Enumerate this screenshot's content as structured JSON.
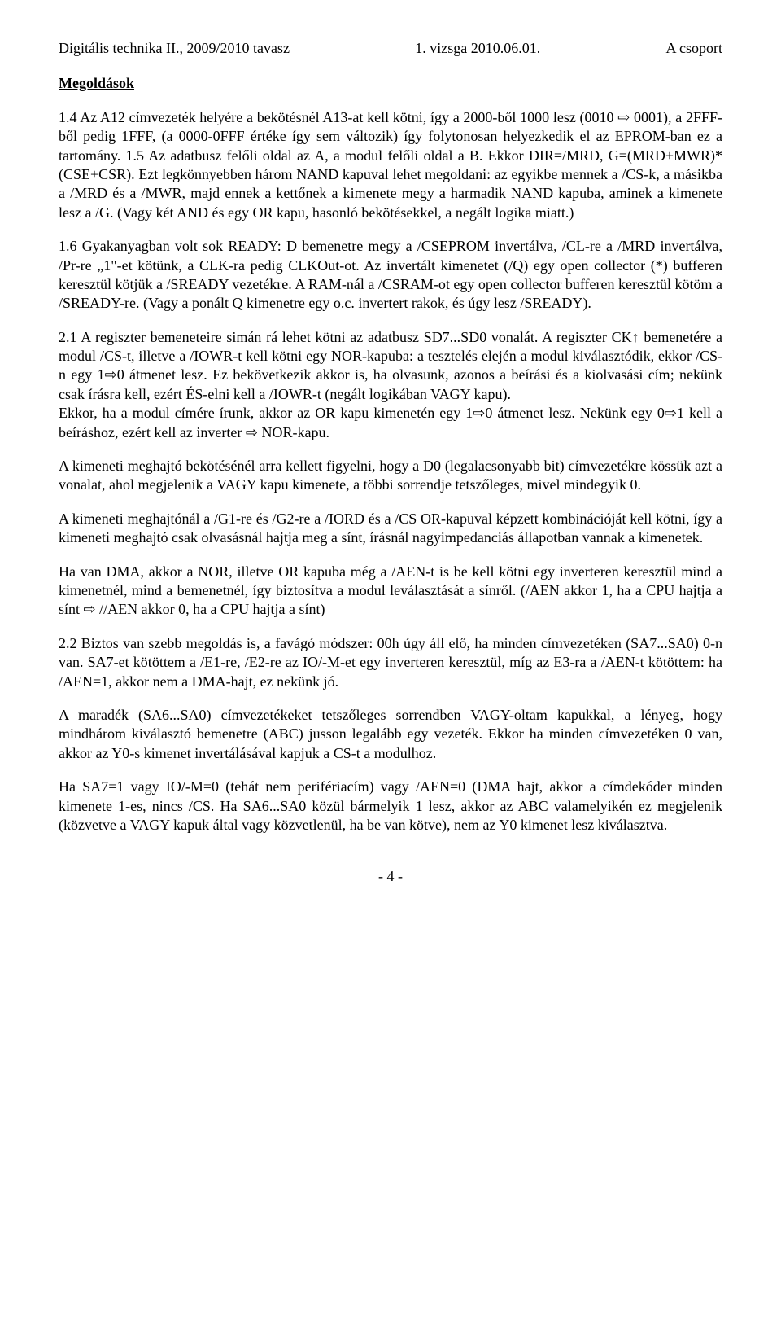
{
  "header": {
    "left": "Digitális technika II., 2009/2010 tavasz",
    "center": "1. vizsga 2010.06.01.",
    "right": "A csoport"
  },
  "title": "Megoldások",
  "paragraphs": {
    "p1": "1.4 Az A12 címvezeték helyére a bekötésnél A13-at kell kötni, így a 2000-ből 1000 lesz (0010 ⇨ 0001), a 2FFF-ből pedig 1FFF, (a 0000-0FFF értéke így sem változik) így folytonosan helyezkedik el az EPROM-ban ez a tartomány. 1.5 Az adatbusz felőli oldal az A, a modul felőli oldal a B. Ekkor DIR=/MRD, G=(MRD+MWR)*(CSE+CSR). Ezt legkönnyebben három NAND kapuval lehet megoldani: az egyikbe mennek a /CS-k, a másikba a /MRD és a /MWR, majd ennek a kettőnek a kimenete megy a harmadik NAND kapuba, aminek a kimenete lesz a /G. (Vagy két AND és egy OR kapu, hasonló bekötésekkel, a negált logika miatt.)",
    "p2": "1.6 Gyakanyagban volt sok READY:  D bemenetre megy a /CSEPROM invertálva, /CL-re a /MRD invertálva, /Pr-re „1\"-et kötünk,  a CLK-ra pedig CLKOut-ot. Az invertált kimenetet (/Q) egy open collector (*) bufferen keresztül kötjük a /SREADY vezetékre. A RAM-nál a /CSRAM-ot egy open collector bufferen keresztül kötöm a /SREADY-re. (Vagy a ponált Q kimenetre egy o.c. invertert rakok, és úgy lesz /SREADY).",
    "p3": "2.1 A regiszter bemeneteire simán rá lehet kötni az adatbusz SD7...SD0 vonalát. A regiszter CK↑ bemenetére a modul /CS-t, illetve a /IOWR-t kell kötni egy NOR-kapuba: a tesztelés elején a modul kiválasztódik, ekkor /CS-n egy 1⇨0 átmenet lesz. Ez bekövetkezik akkor is, ha olvasunk, azonos a beírási és a kiolvasási cím; nekünk csak írásra kell, ezért ÉS-elni kell a /IOWR-t (negált logikában VAGY kapu).",
    "p3b": "Ekkor, ha a modul címére írunk, akkor az OR kapu kimenetén egy 1⇨0 átmenet lesz. Nekünk egy 0⇨1 kell a beíráshoz, ezért kell az inverter ⇨ NOR-kapu.",
    "p4": "A kimeneti meghajtó bekötésénél arra kellett figyelni, hogy a D0 (legalacsonyabb bit) címvezetékre kössük azt a vonalat, ahol megjelenik a VAGY kapu kimenete, a többi sorrendje tetszőleges, mivel mindegyik 0.",
    "p5": "A kimeneti meghajtónál a /G1-re és /G2-re a /IORD és a /CS OR-kapuval képzett kombinációját kell kötni, így a kimeneti meghajtó csak olvasásnál hajtja meg a sínt, írásnál nagyimpedanciás állapotban vannak a kimenetek.",
    "p6": "Ha van DMA, akkor a NOR, illetve OR kapuba még a /AEN-t is be kell kötni egy inverteren keresztül mind a kimenetnél, mind a bemenetnél, így biztosítva a modul leválasztását a sínről. (/AEN akkor 1, ha a CPU hajtja a sínt ⇨ //AEN akkor 0, ha a CPU hajtja a sínt)",
    "p7": "2.2 Biztos van szebb megoldás is, a favágó módszer: 00h úgy áll elő, ha minden címvezetéken (SA7...SA0) 0-n van. SA7-et kötöttem a /E1-re, /E2-re az IO/-M-et egy inverteren keresztül, míg az E3-ra a /AEN-t kötöttem: ha /AEN=1, akkor nem a DMA-hajt, ez nekünk jó.",
    "p8": "A maradék (SA6...SA0) címvezetékeket tetszőleges sorrendben VAGY-oltam kapukkal, a lényeg, hogy mindhárom kiválasztó bemenetre (ABC) jusson legalább egy vezeték. Ekkor ha minden címvezetéken 0 van, akkor az Y0-s kimenet invertálásával kapjuk a CS-t a modulhoz.",
    "p9": "Ha SA7=1 vagy IO/-M=0 (tehát nem perifériacím) vagy /AEN=0 (DMA hajt, akkor a címdekóder minden kimenete 1-es, nincs /CS. Ha SA6...SA0 közül bármelyik 1 lesz, akkor az ABC valamelyikén ez megjelenik (közvetve a VAGY kapuk által vagy közvetlenül, ha be van kötve), nem az Y0 kimenet lesz kiválasztva."
  },
  "footer": "- 4 -"
}
